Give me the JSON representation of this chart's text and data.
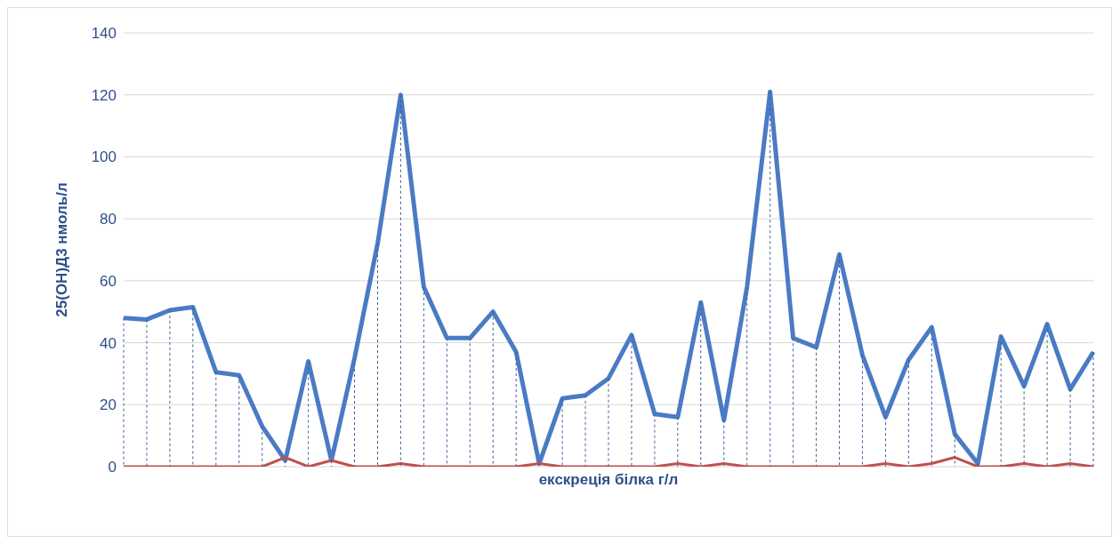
{
  "chart_data": {
    "type": "line",
    "xlabel": "екскреція білка г/л",
    "ylabel": "25(ОН)Д3 нмоль/л",
    "categories": [
      null,
      null,
      null,
      null,
      null,
      null,
      null,
      null,
      null,
      null,
      null,
      null,
      null,
      null,
      null,
      null,
      null,
      null,
      null,
      null,
      null,
      null,
      null,
      null,
      null,
      null,
      null,
      null,
      null,
      null,
      null,
      null,
      null,
      null,
      null,
      null,
      null,
      null,
      null,
      null,
      null,
      null,
      null
    ],
    "series": [
      {
        "color": "#4a7bc4",
        "values": [
          48,
          47.5,
          50.5,
          51.5,
          30.5,
          29.5,
          13,
          2,
          34,
          2,
          35,
          72,
          120,
          58,
          41.5,
          41.5,
          50,
          37,
          1,
          22,
          23,
          28.5,
          42.5,
          17,
          16,
          53,
          15,
          58,
          121,
          41.5,
          38.5,
          68.5,
          36,
          16,
          34.5,
          45,
          10.5,
          1,
          42,
          26,
          46,
          25,
          37
        ]
      },
      {
        "color": "#c0504d",
        "values": [
          0,
          0,
          0,
          0,
          0,
          0,
          0,
          3,
          0,
          2,
          0,
          0,
          1,
          0,
          0,
          0,
          0,
          0,
          1,
          0,
          0,
          0,
          0,
          0,
          1,
          0,
          1,
          0,
          0,
          0,
          0,
          0,
          0,
          1,
          0,
          1,
          3,
          0,
          0,
          1,
          0,
          1,
          0
        ]
      }
    ],
    "ylim": [
      0,
      140
    ],
    "yticks": [
      0,
      20,
      40,
      60,
      80,
      100,
      120,
      140
    ],
    "grid": "y",
    "marker": "none",
    "line_style": "solid"
  }
}
